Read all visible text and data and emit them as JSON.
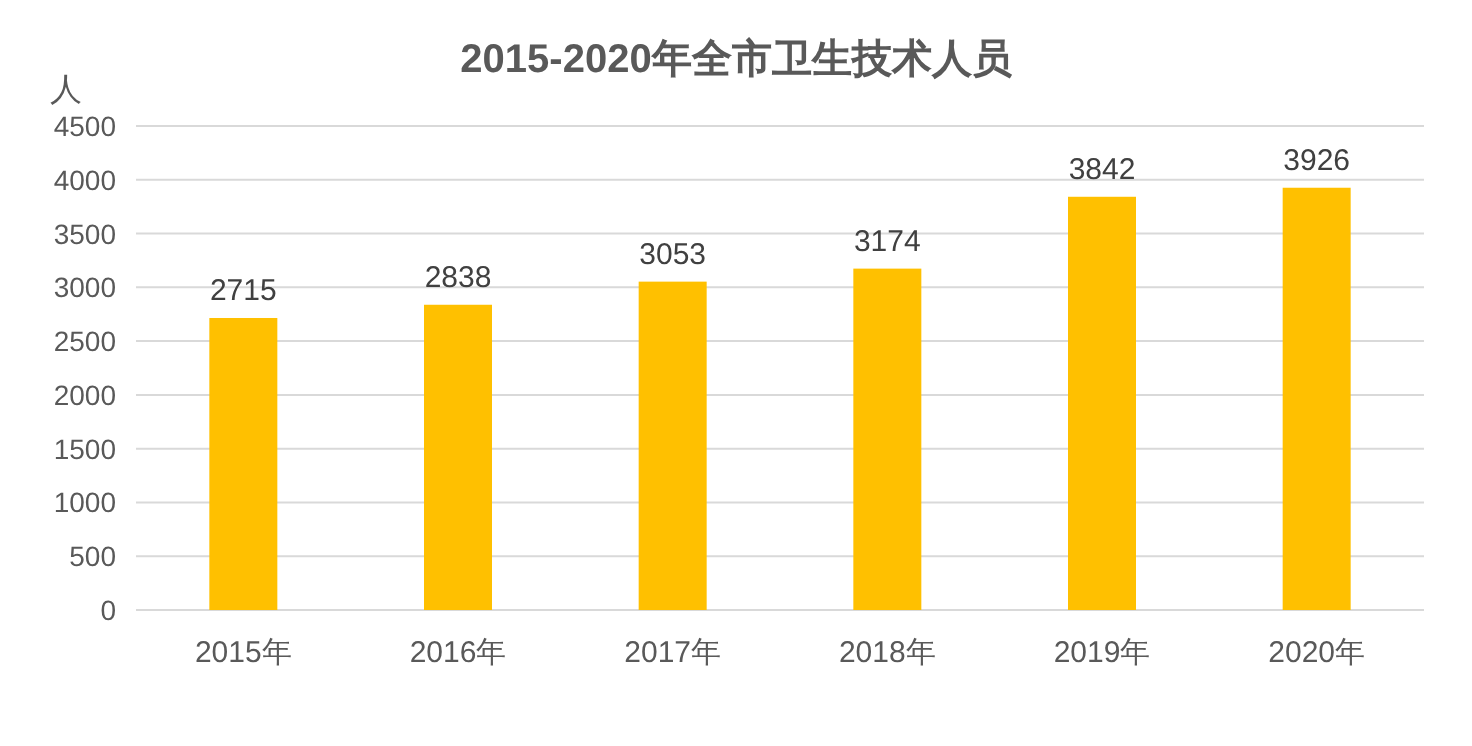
{
  "chart_data": {
    "type": "bar",
    "title": "2015-2020年全市卫生技术人员",
    "ylabel": "人",
    "categories": [
      "2015年",
      "2016年",
      "2017年",
      "2018年",
      "2019年",
      "2020年"
    ],
    "values": [
      2715,
      2838,
      3053,
      3174,
      3842,
      3926
    ],
    "color": "#ffc000",
    "ylim": [
      0,
      4500
    ],
    "yticks": [
      0,
      500,
      1000,
      1500,
      2000,
      2500,
      3000,
      3500,
      4000,
      4500
    ],
    "grid": "y",
    "data_labels": true
  }
}
